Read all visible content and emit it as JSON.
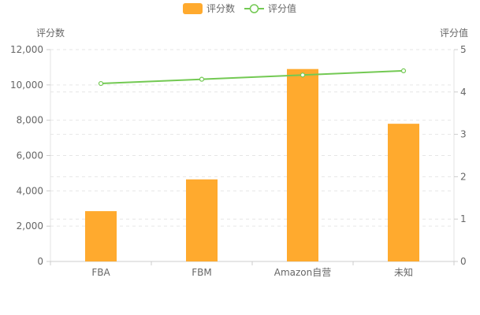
{
  "chart_data": {
    "type": "bar",
    "categories": [
      "FBA",
      "FBM",
      "Amazon自营",
      "未知"
    ],
    "series": [
      {
        "name": "评分数",
        "type": "bar",
        "axis": "left",
        "color": "#ffaa2e",
        "values": [
          2850,
          4650,
          10900,
          7800
        ]
      },
      {
        "name": "评分值",
        "type": "line",
        "axis": "right",
        "color": "#73c953",
        "values": [
          4.2,
          4.3,
          4.4,
          4.5
        ]
      }
    ],
    "y_left": {
      "label": "评分数",
      "min": 0,
      "max": 12000,
      "ticks": [
        0,
        2000,
        4000,
        6000,
        8000,
        10000,
        12000
      ],
      "tick_labels": [
        "0",
        "2,000",
        "4,000",
        "6,000",
        "8,000",
        "10,000",
        "12,000"
      ]
    },
    "y_right": {
      "label": "评分值",
      "min": 0,
      "max": 5,
      "ticks": [
        0,
        1,
        2,
        3,
        4,
        5
      ],
      "tick_labels": [
        "0",
        "1",
        "2",
        "3",
        "4",
        "5"
      ]
    },
    "legend_position": "top-center",
    "grid": true
  }
}
